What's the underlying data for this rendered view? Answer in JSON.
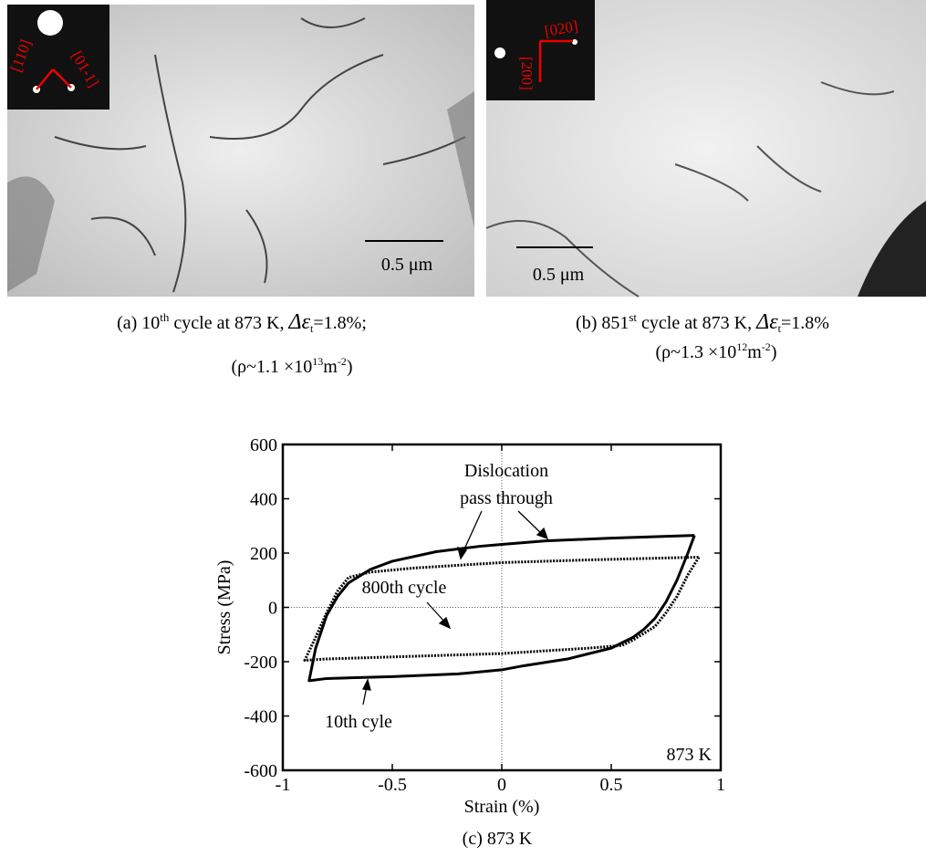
{
  "panels": [
    {
      "diffraction_labels": [
        "[110]",
        "[01-1]"
      ],
      "scale_bar": "0.5 μm",
      "caption": {
        "prefix": "(a) 10",
        "sup": "th",
        "rest": " cycle at 873 K,  ",
        "symbol": "Δε",
        "sub": "t",
        "tail": "=1.8%;"
      },
      "density": {
        "prefix": "(ρ~1.1 ×10",
        "exp": "13",
        "unit": "m",
        "unit_exp": "-2",
        "close": ")"
      }
    },
    {
      "diffraction_labels": [
        "[020]",
        "[200]"
      ],
      "scale_bar": "0.5 μm",
      "caption": {
        "prefix": "(b) 851",
        "sup": "st",
        "rest": " cycle at 873 K,  ",
        "symbol": "Δε",
        "sub": "t",
        "tail": "=1.8%"
      },
      "density": {
        "prefix": "(ρ~1.3 ×10",
        "exp": "12",
        "unit": "m",
        "unit_exp": "-2",
        "close": ")"
      }
    }
  ],
  "chart_data": {
    "type": "line",
    "xlabel": "Strain (%)",
    "ylabel": "Stress (MPa)",
    "caption": "(c) 873 K",
    "xlim": [
      -1,
      1
    ],
    "ylim": [
      -600,
      600
    ],
    "xticks": [
      -1,
      -0.5,
      0,
      0.5,
      1
    ],
    "yticks": [
      -600,
      -400,
      -200,
      0,
      200,
      400,
      600
    ],
    "zero_lines": true,
    "annotations": [
      "Dislocation",
      "pass through",
      "800th cycle",
      "10th cyle",
      "873 K"
    ],
    "series": [
      {
        "color": "#000000",
        "style": "solid",
        "x": [
          0.88,
          0.85,
          0.8,
          0.75,
          0.7,
          0.65,
          0.6,
          0.5,
          0.3,
          0.1,
          0,
          -0.2,
          -0.5,
          -0.8,
          -0.88,
          -0.85,
          -0.8,
          -0.75,
          -0.7,
          -0.6,
          -0.5,
          -0.3,
          -0.1,
          0,
          0.2,
          0.5,
          0.88
        ],
        "values": [
          265,
          200,
          100,
          20,
          -40,
          -80,
          -110,
          -150,
          -190,
          -215,
          -230,
          -245,
          -255,
          -262,
          -270,
          -150,
          -30,
          40,
          90,
          140,
          170,
          205,
          225,
          232,
          245,
          255,
          265
        ]
      },
      {
        "color": "#000000",
        "style": "dotted",
        "x": [
          0.9,
          0.85,
          0.8,
          0.75,
          0.7,
          0.6,
          0.55,
          0.4,
          0.2,
          0,
          -0.4,
          -0.8,
          -0.9,
          -0.85,
          -0.8,
          -0.75,
          -0.7,
          -0.6,
          -0.4,
          -0.2,
          0,
          0.4,
          0.9
        ],
        "values": [
          185,
          120,
          40,
          -20,
          -70,
          -120,
          -140,
          -150,
          -160,
          -170,
          -180,
          -190,
          -195,
          -110,
          -20,
          60,
          110,
          130,
          145,
          155,
          165,
          175,
          185
        ]
      }
    ]
  }
}
